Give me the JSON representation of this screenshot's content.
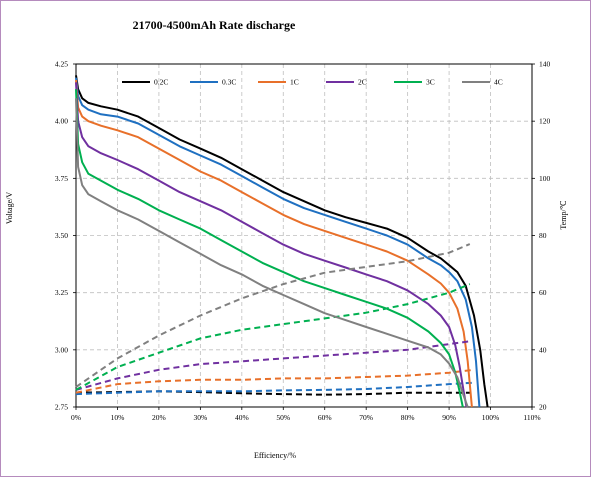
{
  "chart_data": {
    "type": "line",
    "title": "21700-4500mAh Rate discharge",
    "xlabel": "Efficiency/%",
    "ylabel_left": "Voltage/V",
    "ylabel_right": "Temp/℃",
    "x_ticks": [
      "0%",
      "10%",
      "20%",
      "30%",
      "40%",
      "50%",
      "60%",
      "70%",
      "80%",
      "90%",
      "100%",
      "110%"
    ],
    "y_left_ticks": [
      "2.75",
      "3.00",
      "3.25",
      "3.50",
      "3.75",
      "4.00",
      "4.25"
    ],
    "y_right_ticks": [
      "20",
      "40",
      "60",
      "80",
      "100",
      "120",
      "140"
    ],
    "xlim": [
      0,
      110
    ],
    "ylim_left": [
      2.75,
      4.25
    ],
    "ylim_right": [
      20,
      140
    ],
    "grid": true,
    "legend_position": "top",
    "series": [
      {
        "name": "0.2C",
        "color": "#000000",
        "voltage": [
          [
            0,
            4.2
          ],
          [
            0.5,
            4.14
          ],
          [
            1.5,
            4.1
          ],
          [
            3,
            4.08
          ],
          [
            6,
            4.065
          ],
          [
            10,
            4.05
          ],
          [
            15,
            4.02
          ],
          [
            20,
            3.97
          ],
          [
            25,
            3.92
          ],
          [
            30,
            3.88
          ],
          [
            35,
            3.84
          ],
          [
            40,
            3.79
          ],
          [
            45,
            3.74
          ],
          [
            50,
            3.69
          ],
          [
            55,
            3.65
          ],
          [
            60,
            3.61
          ],
          [
            65,
            3.58
          ],
          [
            70,
            3.555
          ],
          [
            75,
            3.53
          ],
          [
            80,
            3.49
          ],
          [
            85,
            3.43
          ],
          [
            88,
            3.4
          ],
          [
            90,
            3.37
          ],
          [
            92,
            3.34
          ],
          [
            94,
            3.28
          ],
          [
            96,
            3.15
          ],
          [
            97.5,
            3.0
          ],
          [
            98.5,
            2.85
          ],
          [
            99.3,
            2.75
          ]
        ],
        "temp": [
          [
            0,
            25
          ],
          [
            10,
            25.2
          ],
          [
            20,
            25.5
          ],
          [
            30,
            25.2
          ],
          [
            40,
            24.8
          ],
          [
            50,
            24.5
          ],
          [
            60,
            24.3
          ],
          [
            70,
            24.5
          ],
          [
            80,
            25
          ],
          [
            90,
            25
          ],
          [
            95,
            25
          ]
        ]
      },
      {
        "name": "0.3C",
        "color": "#1f70c1",
        "voltage": [
          [
            0,
            4.19
          ],
          [
            0.5,
            4.11
          ],
          [
            1.5,
            4.07
          ],
          [
            3,
            4.05
          ],
          [
            6,
            4.03
          ],
          [
            10,
            4.02
          ],
          [
            15,
            3.99
          ],
          [
            20,
            3.94
          ],
          [
            25,
            3.89
          ],
          [
            30,
            3.85
          ],
          [
            35,
            3.81
          ],
          [
            40,
            3.76
          ],
          [
            45,
            3.71
          ],
          [
            50,
            3.66
          ],
          [
            55,
            3.62
          ],
          [
            60,
            3.59
          ],
          [
            65,
            3.56
          ],
          [
            70,
            3.53
          ],
          [
            75,
            3.5
          ],
          [
            80,
            3.46
          ],
          [
            85,
            3.4
          ],
          [
            88,
            3.37
          ],
          [
            90,
            3.34
          ],
          [
            92,
            3.3
          ],
          [
            94,
            3.22
          ],
          [
            95.5,
            3.1
          ],
          [
            96.5,
            2.95
          ],
          [
            97.3,
            2.75
          ]
        ],
        "temp": [
          [
            0,
            24.5
          ],
          [
            10,
            25
          ],
          [
            20,
            25.5
          ],
          [
            30,
            25.5
          ],
          [
            40,
            25.5
          ],
          [
            50,
            25.8
          ],
          [
            60,
            26
          ],
          [
            70,
            26.3
          ],
          [
            80,
            27
          ],
          [
            90,
            28
          ],
          [
            96,
            28.5
          ]
        ]
      },
      {
        "name": "1C",
        "color": "#e8702a",
        "voltage": [
          [
            0,
            4.18
          ],
          [
            0.5,
            4.06
          ],
          [
            1.5,
            4.02
          ],
          [
            3,
            4.0
          ],
          [
            6,
            3.98
          ],
          [
            10,
            3.96
          ],
          [
            15,
            3.93
          ],
          [
            20,
            3.88
          ],
          [
            25,
            3.83
          ],
          [
            30,
            3.78
          ],
          [
            35,
            3.74
          ],
          [
            40,
            3.69
          ],
          [
            45,
            3.64
          ],
          [
            50,
            3.59
          ],
          [
            55,
            3.55
          ],
          [
            60,
            3.52
          ],
          [
            65,
            3.49
          ],
          [
            70,
            3.46
          ],
          [
            75,
            3.43
          ],
          [
            80,
            3.39
          ],
          [
            85,
            3.33
          ],
          [
            88,
            3.29
          ],
          [
            90,
            3.25
          ],
          [
            92,
            3.18
          ],
          [
            93.5,
            3.08
          ],
          [
            94.5,
            2.95
          ],
          [
            95.5,
            2.75
          ]
        ],
        "temp": [
          [
            0,
            25
          ],
          [
            10,
            28
          ],
          [
            20,
            29
          ],
          [
            30,
            29.5
          ],
          [
            40,
            29.5
          ],
          [
            50,
            30
          ],
          [
            60,
            30
          ],
          [
            70,
            30.5
          ],
          [
            80,
            31
          ],
          [
            90,
            32
          ],
          [
            96,
            33
          ]
        ]
      },
      {
        "name": "2C",
        "color": "#7030a0",
        "voltage": [
          [
            0,
            4.17
          ],
          [
            0.5,
            4.0
          ],
          [
            1.5,
            3.93
          ],
          [
            3,
            3.89
          ],
          [
            6,
            3.86
          ],
          [
            10,
            3.83
          ],
          [
            15,
            3.79
          ],
          [
            20,
            3.74
          ],
          [
            25,
            3.69
          ],
          [
            30,
            3.65
          ],
          [
            35,
            3.61
          ],
          [
            40,
            3.56
          ],
          [
            45,
            3.51
          ],
          [
            50,
            3.46
          ],
          [
            55,
            3.42
          ],
          [
            60,
            3.39
          ],
          [
            65,
            3.36
          ],
          [
            70,
            3.33
          ],
          [
            75,
            3.3
          ],
          [
            80,
            3.26
          ],
          [
            85,
            3.2
          ],
          [
            88,
            3.15
          ],
          [
            90,
            3.1
          ],
          [
            91.5,
            3.02
          ],
          [
            92.5,
            2.93
          ],
          [
            93.5,
            2.82
          ],
          [
            94.2,
            2.75
          ]
        ],
        "temp": [
          [
            0,
            26
          ],
          [
            10,
            30
          ],
          [
            20,
            33
          ],
          [
            30,
            35
          ],
          [
            40,
            36
          ],
          [
            50,
            37
          ],
          [
            60,
            38
          ],
          [
            70,
            39
          ],
          [
            80,
            40
          ],
          [
            90,
            42
          ],
          [
            95,
            43
          ]
        ]
      },
      {
        "name": "3C",
        "color": "#00b050",
        "voltage": [
          [
            0,
            4.14
          ],
          [
            0.5,
            3.9
          ],
          [
            1.5,
            3.82
          ],
          [
            3,
            3.77
          ],
          [
            6,
            3.74
          ],
          [
            10,
            3.7
          ],
          [
            15,
            3.66
          ],
          [
            20,
            3.61
          ],
          [
            25,
            3.57
          ],
          [
            30,
            3.53
          ],
          [
            35,
            3.48
          ],
          [
            40,
            3.43
          ],
          [
            45,
            3.38
          ],
          [
            50,
            3.34
          ],
          [
            55,
            3.3
          ],
          [
            60,
            3.27
          ],
          [
            65,
            3.24
          ],
          [
            70,
            3.21
          ],
          [
            75,
            3.18
          ],
          [
            80,
            3.14
          ],
          [
            85,
            3.08
          ],
          [
            88,
            3.03
          ],
          [
            90,
            2.98
          ],
          [
            91.5,
            2.9
          ],
          [
            92.5,
            2.82
          ],
          [
            93.3,
            2.75
          ]
        ],
        "temp": [
          [
            0,
            26
          ],
          [
            10,
            34
          ],
          [
            20,
            39
          ],
          [
            30,
            44
          ],
          [
            40,
            47
          ],
          [
            50,
            49
          ],
          [
            60,
            51
          ],
          [
            70,
            53
          ],
          [
            80,
            56
          ],
          [
            90,
            60
          ],
          [
            95,
            63
          ]
        ]
      },
      {
        "name": "4C",
        "color": "#808080",
        "voltage": [
          [
            0,
            4.1
          ],
          [
            0.5,
            3.8
          ],
          [
            1.5,
            3.72
          ],
          [
            3,
            3.68
          ],
          [
            6,
            3.65
          ],
          [
            10,
            3.61
          ],
          [
            15,
            3.57
          ],
          [
            20,
            3.52
          ],
          [
            25,
            3.47
          ],
          [
            30,
            3.42
          ],
          [
            35,
            3.37
          ],
          [
            40,
            3.33
          ],
          [
            45,
            3.28
          ],
          [
            50,
            3.24
          ],
          [
            55,
            3.2
          ],
          [
            60,
            3.16
          ],
          [
            65,
            3.13
          ],
          [
            70,
            3.1
          ],
          [
            75,
            3.07
          ],
          [
            80,
            3.04
          ],
          [
            85,
            3.01
          ],
          [
            88,
            2.98
          ],
          [
            90,
            2.94
          ],
          [
            92,
            2.88
          ],
          [
            93.5,
            2.8
          ],
          [
            94.5,
            2.75
          ]
        ],
        "temp": [
          [
            0,
            27
          ],
          [
            10,
            37
          ],
          [
            20,
            45
          ],
          [
            30,
            52
          ],
          [
            40,
            58
          ],
          [
            50,
            63
          ],
          [
            60,
            67
          ],
          [
            70,
            69
          ],
          [
            80,
            71
          ],
          [
            90,
            74
          ],
          [
            95,
            77
          ]
        ]
      }
    ]
  }
}
